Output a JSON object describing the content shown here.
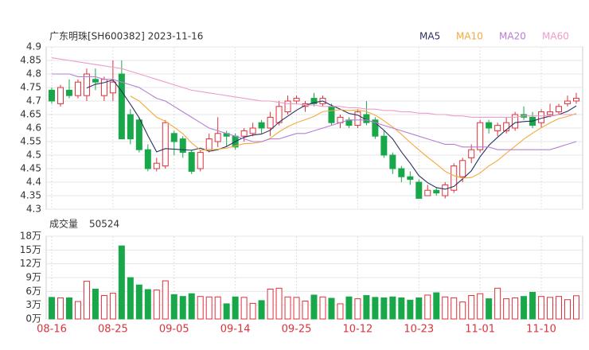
{
  "chart_data": {
    "type": "candlestick",
    "title": "广东明珠[SH600382] 2023-11-16",
    "categories": [
      "08-16",
      null,
      null,
      null,
      null,
      null,
      null,
      "08-25",
      null,
      null,
      null,
      null,
      null,
      null,
      "09-05",
      null,
      null,
      null,
      null,
      null,
      null,
      "09-14",
      null,
      null,
      null,
      null,
      null,
      null,
      "09-25",
      null,
      null,
      null,
      null,
      null,
      null,
      "10-12",
      null,
      null,
      null,
      null,
      null,
      null,
      "10-23",
      null,
      null,
      null,
      null,
      null,
      null,
      "11-01",
      null,
      null,
      null,
      null,
      null,
      null,
      "11-10",
      null,
      null,
      null,
      null
    ],
    "open": [
      4.74,
      4.69,
      4.74,
      4.72,
      4.72,
      4.78,
      4.72,
      4.73,
      4.8,
      4.65,
      4.63,
      4.52,
      4.45,
      4.46,
      4.58,
      4.56,
      4.51,
      4.45,
      4.52,
      4.55,
      4.58,
      4.57,
      4.57,
      4.58,
      4.62,
      4.6,
      4.62,
      4.66,
      4.7,
      4.68,
      4.71,
      4.69,
      4.68,
      4.62,
      4.63,
      4.61,
      4.65,
      4.63,
      4.57,
      4.5,
      4.45,
      4.42,
      4.4,
      4.35,
      4.37,
      4.35,
      4.37,
      4.42,
      4.49,
      4.52,
      4.62,
      4.59,
      4.59,
      4.6,
      4.65,
      4.64,
      4.62,
      4.65,
      4.66,
      4.69,
      4.7
    ],
    "high": [
      4.75,
      4.76,
      4.78,
      4.78,
      4.82,
      4.82,
      4.79,
      4.85,
      4.85,
      4.67,
      4.64,
      4.54,
      4.49,
      4.63,
      4.59,
      4.57,
      4.52,
      4.52,
      4.58,
      4.64,
      4.59,
      4.58,
      4.6,
      4.62,
      4.63,
      4.66,
      4.7,
      4.72,
      4.72,
      4.7,
      4.73,
      4.72,
      4.69,
      4.65,
      4.64,
      4.67,
      4.7,
      4.64,
      4.59,
      4.51,
      4.46,
      4.44,
      4.41,
      4.39,
      4.38,
      4.4,
      4.47,
      4.49,
      4.54,
      4.63,
      4.63,
      4.62,
      4.64,
      4.66,
      4.68,
      4.66,
      4.67,
      4.69,
      4.69,
      4.72,
      4.73
    ],
    "low": [
      4.69,
      4.68,
      4.71,
      4.71,
      4.7,
      4.74,
      4.7,
      4.7,
      4.56,
      4.54,
      4.51,
      4.44,
      4.44,
      4.45,
      4.5,
      4.49,
      4.43,
      4.44,
      4.51,
      4.53,
      4.53,
      4.52,
      4.55,
      4.57,
      4.58,
      4.57,
      4.61,
      4.65,
      4.69,
      4.66,
      4.68,
      4.68,
      4.61,
      4.6,
      4.6,
      4.6,
      4.61,
      4.56,
      4.49,
      4.43,
      4.4,
      4.39,
      4.34,
      4.35,
      4.35,
      4.34,
      4.36,
      4.4,
      4.47,
      4.51,
      4.58,
      4.57,
      4.58,
      4.59,
      4.63,
      4.6,
      4.6,
      4.64,
      4.65,
      4.68,
      4.69
    ],
    "close": [
      4.7,
      4.75,
      4.72,
      4.77,
      4.8,
      4.77,
      4.78,
      4.77,
      4.56,
      4.56,
      4.52,
      4.45,
      4.47,
      4.62,
      4.55,
      4.51,
      4.44,
      4.51,
      4.56,
      4.58,
      4.57,
      4.53,
      4.59,
      4.6,
      4.6,
      4.64,
      4.68,
      4.7,
      4.71,
      4.69,
      4.69,
      4.71,
      4.62,
      4.64,
      4.61,
      4.66,
      4.62,
      4.57,
      4.5,
      4.45,
      4.42,
      4.41,
      4.34,
      4.37,
      4.36,
      4.39,
      4.46,
      4.48,
      4.52,
      4.62,
      4.6,
      4.61,
      4.62,
      4.65,
      4.64,
      4.61,
      4.66,
      4.66,
      4.68,
      4.7,
      4.71
    ],
    "up_color": "#e0303a",
    "down_color": "#18a84a",
    "series": [
      {
        "name": "MA5",
        "color": "#2a3163",
        "values": [
          null,
          null,
          null,
          null,
          4.748,
          4.762,
          4.768,
          4.778,
          4.736,
          4.688,
          4.638,
          4.572,
          4.512,
          4.524,
          4.522,
          4.52,
          4.518,
          4.526,
          4.514,
          4.52,
          4.532,
          4.55,
          4.566,
          4.574,
          4.578,
          4.592,
          4.622,
          4.644,
          4.666,
          4.684,
          4.694,
          4.7,
          4.684,
          4.67,
          4.654,
          4.648,
          4.63,
          4.62,
          4.592,
          4.56,
          4.512,
          4.47,
          4.424,
          4.398,
          4.38,
          4.374,
          4.384,
          4.412,
          4.442,
          4.494,
          4.536,
          4.566,
          4.594,
          4.62,
          4.624,
          4.626,
          4.636,
          4.644,
          4.65,
          4.662,
          4.682
        ]
      },
      {
        "name": "MA10",
        "color": "#f3a93c",
        "values": [
          null,
          null,
          null,
          null,
          null,
          null,
          null,
          null,
          null,
          4.718,
          4.7,
          4.67,
          4.64,
          4.625,
          4.603,
          4.579,
          4.545,
          4.519,
          4.519,
          4.522,
          4.526,
          4.534,
          4.542,
          4.544,
          4.549,
          4.562,
          4.586,
          4.605,
          4.62,
          4.631,
          4.643,
          4.661,
          4.664,
          4.668,
          4.665,
          4.667,
          4.661,
          4.648,
          4.627,
          4.604,
          4.577,
          4.547,
          4.519,
          4.492,
          4.467,
          4.44,
          4.424,
          4.415,
          4.417,
          4.434,
          4.46,
          4.48,
          4.507,
          4.533,
          4.559,
          4.581,
          4.601,
          4.619,
          4.635,
          4.643,
          4.654
        ]
      },
      {
        "name": "MA20",
        "color": "#b57fd6",
        "values": [
          4.8,
          4.8,
          4.8,
          4.79,
          4.79,
          4.79,
          4.78,
          4.78,
          4.77,
          4.76,
          4.75,
          4.73,
          4.71,
          4.7,
          4.68,
          4.66,
          4.64,
          4.62,
          4.6,
          4.59,
          4.58,
          4.57,
          4.56,
          4.55,
          4.55,
          4.56,
          4.56,
          4.57,
          4.58,
          4.58,
          4.59,
          4.6,
          4.61,
          4.62,
          4.63,
          4.63,
          4.63,
          4.62,
          4.61,
          4.6,
          4.59,
          4.58,
          4.57,
          4.56,
          4.55,
          4.54,
          4.54,
          4.53,
          4.53,
          4.53,
          4.53,
          4.52,
          4.52,
          4.52,
          4.52,
          4.52,
          4.52,
          4.52,
          4.53,
          4.54,
          4.55
        ]
      },
      {
        "name": "MA60",
        "color": "#ef9bc9",
        "values": [
          4.86,
          4.855,
          4.85,
          4.845,
          4.84,
          4.835,
          4.83,
          4.825,
          4.82,
          4.81,
          4.8,
          4.79,
          4.78,
          4.77,
          4.76,
          4.75,
          4.74,
          4.735,
          4.73,
          4.725,
          4.72,
          4.715,
          4.71,
          4.705,
          4.7,
          4.7,
          4.695,
          4.69,
          4.69,
          4.685,
          4.685,
          4.68,
          4.68,
          4.68,
          4.675,
          4.675,
          4.67,
          4.67,
          4.665,
          4.665,
          4.66,
          4.66,
          4.655,
          4.655,
          4.65,
          4.65,
          4.645,
          4.645,
          4.64,
          4.64,
          4.64,
          4.64,
          4.64,
          4.64,
          4.645,
          4.645,
          4.645,
          4.645,
          4.65,
          4.65,
          4.65
        ]
      }
    ],
    "ylim": [
      4.3,
      4.9
    ],
    "yticks": [
      4.3,
      4.35,
      4.4,
      4.45,
      4.5,
      4.55,
      4.6,
      4.65,
      4.7,
      4.75,
      4.8,
      4.85,
      4.9
    ],
    "grid": true,
    "volume": {
      "title": "成交量",
      "values": [
        47000,
        46000,
        46000,
        38000,
        82000,
        65000,
        51000,
        56000,
        159000,
        90000,
        74000,
        64000,
        63000,
        83000,
        53000,
        49000,
        55000,
        49000,
        48000,
        48000,
        33000,
        48000,
        47000,
        34000,
        40000,
        65000,
        67000,
        48000,
        47000,
        39000,
        52000,
        48000,
        45000,
        33000,
        48000,
        44000,
        51000,
        47000,
        46000,
        48000,
        46000,
        41000,
        46000,
        52000,
        57000,
        48000,
        46000,
        37000,
        51000,
        55000,
        44000,
        67000,
        44000,
        46000,
        49000,
        58000,
        49000,
        47000,
        49000,
        42000,
        50524
      ],
      "ylim": [
        0,
        180000
      ],
      "yticks": [
        {
          "value": 0,
          "label": "0万"
        },
        {
          "value": 30000,
          "label": "3万"
        },
        {
          "value": 60000,
          "label": "6万"
        },
        {
          "value": 90000,
          "label": "9万"
        },
        {
          "value": 120000,
          "label": "12万"
        },
        {
          "value": 150000,
          "label": "15万"
        },
        {
          "value": 180000,
          "label": "18万"
        }
      ]
    }
  }
}
